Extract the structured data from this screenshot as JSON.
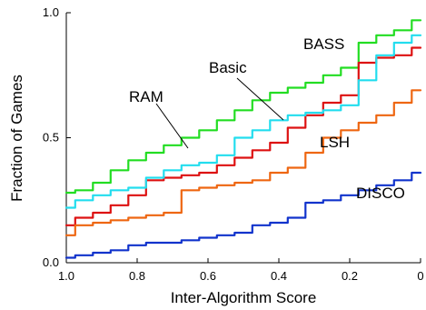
{
  "chart_data": {
    "type": "line",
    "xlabel": "Inter-Algorithm Score",
    "ylabel": "Fraction of Games",
    "xlim": [
      1.0,
      0.0
    ],
    "ylim": [
      0.0,
      1.0
    ],
    "x_reversed": true,
    "x_ticks": [
      "1.0",
      "0.8",
      "0.6",
      "0.4",
      "0.2",
      "0"
    ],
    "y_ticks": [
      "0.0",
      "0.5",
      "1.0"
    ],
    "grid": false,
    "series": [
      {
        "name": "BASS",
        "color": "#22dd22",
        "points": [
          [
            1.0,
            0.28
          ],
          [
            0.95,
            0.29
          ],
          [
            0.9,
            0.32
          ],
          [
            0.85,
            0.37
          ],
          [
            0.8,
            0.41
          ],
          [
            0.75,
            0.44
          ],
          [
            0.7,
            0.47
          ],
          [
            0.65,
            0.5
          ],
          [
            0.6,
            0.53
          ],
          [
            0.55,
            0.57
          ],
          [
            0.5,
            0.61
          ],
          [
            0.45,
            0.65
          ],
          [
            0.4,
            0.68
          ],
          [
            0.35,
            0.7
          ],
          [
            0.3,
            0.72
          ],
          [
            0.25,
            0.75
          ],
          [
            0.2,
            0.78
          ],
          [
            0.15,
            0.88
          ],
          [
            0.1,
            0.91
          ],
          [
            0.05,
            0.93
          ],
          [
            0.0,
            0.97
          ]
        ]
      },
      {
        "name": "Basic",
        "color": "#dd1111",
        "points": [
          [
            1.0,
            0.15
          ],
          [
            0.95,
            0.18
          ],
          [
            0.9,
            0.2
          ],
          [
            0.85,
            0.23
          ],
          [
            0.8,
            0.27
          ],
          [
            0.75,
            0.33
          ],
          [
            0.7,
            0.34
          ],
          [
            0.65,
            0.35
          ],
          [
            0.6,
            0.36
          ],
          [
            0.55,
            0.39
          ],
          [
            0.5,
            0.42
          ],
          [
            0.45,
            0.45
          ],
          [
            0.4,
            0.48
          ],
          [
            0.35,
            0.54
          ],
          [
            0.3,
            0.59
          ],
          [
            0.25,
            0.64
          ],
          [
            0.2,
            0.67
          ],
          [
            0.15,
            0.8
          ],
          [
            0.1,
            0.82
          ],
          [
            0.05,
            0.83
          ],
          [
            0.0,
            0.86
          ]
        ]
      },
      {
        "name": "RAM",
        "color": "#22ddee",
        "points": [
          [
            1.0,
            0.22
          ],
          [
            0.95,
            0.25
          ],
          [
            0.9,
            0.27
          ],
          [
            0.85,
            0.29
          ],
          [
            0.8,
            0.3
          ],
          [
            0.75,
            0.34
          ],
          [
            0.7,
            0.37
          ],
          [
            0.65,
            0.39
          ],
          [
            0.6,
            0.4
          ],
          [
            0.55,
            0.43
          ],
          [
            0.5,
            0.5
          ],
          [
            0.45,
            0.53
          ],
          [
            0.4,
            0.57
          ],
          [
            0.35,
            0.59
          ],
          [
            0.3,
            0.6
          ],
          [
            0.25,
            0.61
          ],
          [
            0.2,
            0.63
          ],
          [
            0.15,
            0.73
          ],
          [
            0.1,
            0.83
          ],
          [
            0.05,
            0.88
          ],
          [
            0.0,
            0.91
          ]
        ]
      },
      {
        "name": "LSH",
        "color": "#ee6611",
        "points": [
          [
            1.0,
            0.11
          ],
          [
            0.95,
            0.15
          ],
          [
            0.9,
            0.16
          ],
          [
            0.85,
            0.17
          ],
          [
            0.8,
            0.18
          ],
          [
            0.75,
            0.19
          ],
          [
            0.7,
            0.2
          ],
          [
            0.65,
            0.29
          ],
          [
            0.6,
            0.3
          ],
          [
            0.55,
            0.31
          ],
          [
            0.5,
            0.32
          ],
          [
            0.45,
            0.33
          ],
          [
            0.4,
            0.36
          ],
          [
            0.35,
            0.38
          ],
          [
            0.3,
            0.44
          ],
          [
            0.25,
            0.5
          ],
          [
            0.2,
            0.53
          ],
          [
            0.15,
            0.56
          ],
          [
            0.1,
            0.59
          ],
          [
            0.05,
            0.64
          ],
          [
            0.0,
            0.69
          ]
        ]
      },
      {
        "name": "DISCO",
        "color": "#1133cc",
        "points": [
          [
            1.0,
            0.02
          ],
          [
            0.95,
            0.03
          ],
          [
            0.9,
            0.04
          ],
          [
            0.85,
            0.05
          ],
          [
            0.8,
            0.07
          ],
          [
            0.75,
            0.08
          ],
          [
            0.7,
            0.08
          ],
          [
            0.65,
            0.09
          ],
          [
            0.6,
            0.1
          ],
          [
            0.55,
            0.11
          ],
          [
            0.5,
            0.12
          ],
          [
            0.45,
            0.15
          ],
          [
            0.4,
            0.16
          ],
          [
            0.35,
            0.18
          ],
          [
            0.3,
            0.24
          ],
          [
            0.25,
            0.25
          ],
          [
            0.2,
            0.27
          ],
          [
            0.15,
            0.29
          ],
          [
            0.1,
            0.31
          ],
          [
            0.05,
            0.33
          ],
          [
            0.0,
            0.36
          ]
        ]
      }
    ],
    "annotations": [
      {
        "label": "BASS",
        "series": "BASS"
      },
      {
        "label": "Basic",
        "series": "Basic"
      },
      {
        "label": "RAM",
        "series": "RAM"
      },
      {
        "label": "LSH",
        "series": "LSH"
      },
      {
        "label": "DISCO",
        "series": "DISCO"
      }
    ]
  }
}
